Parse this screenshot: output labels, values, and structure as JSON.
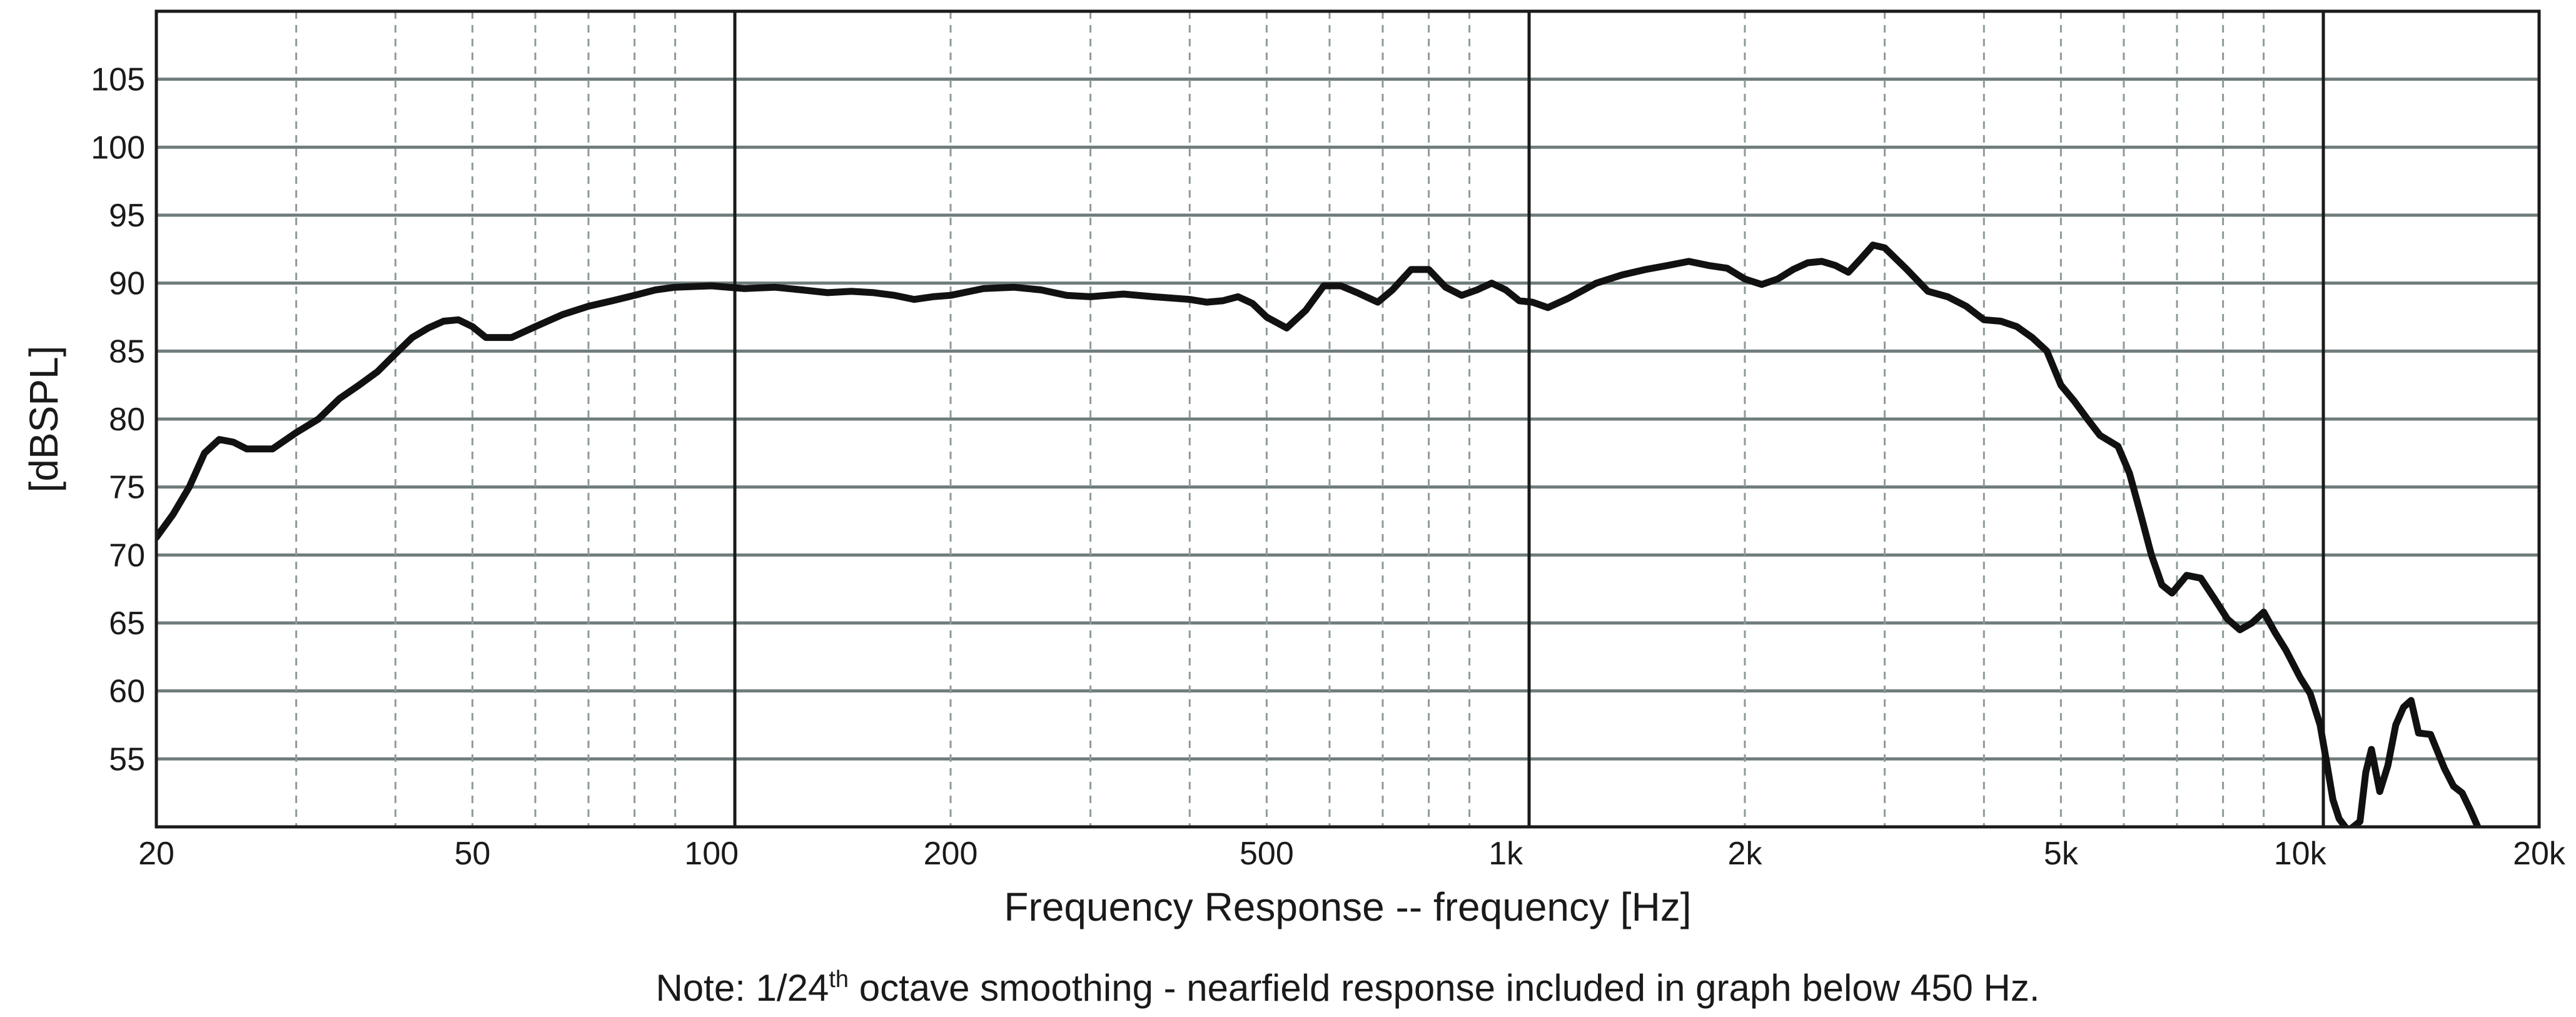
{
  "chart_data": {
    "type": "line",
    "xlabel": "Frequency Response -- frequency [Hz]",
    "ylabel": "[dBSPL]",
    "x_scale": "log",
    "xlim": [
      20,
      20000
    ],
    "ylim": [
      50,
      110
    ],
    "grid": true,
    "x_ticks": [
      {
        "value": 20,
        "label": "20"
      },
      {
        "value": 50,
        "label": "50"
      },
      {
        "value": 100,
        "label": "100"
      },
      {
        "value": 200,
        "label": "200"
      },
      {
        "value": 500,
        "label": "500"
      },
      {
        "value": 1000,
        "label": "1k"
      },
      {
        "value": 2000,
        "label": "2k"
      },
      {
        "value": 5000,
        "label": "5k"
      },
      {
        "value": 10000,
        "label": "10k"
      },
      {
        "value": 20000,
        "label": "20k"
      }
    ],
    "x_minor_grid": [
      30,
      40,
      50,
      60,
      70,
      80,
      90,
      200,
      300,
      400,
      500,
      600,
      700,
      800,
      900,
      2000,
      3000,
      4000,
      5000,
      6000,
      7000,
      8000,
      9000
    ],
    "x_major_grid": [
      107,
      1070,
      10700
    ],
    "y_ticks": [
      55,
      60,
      65,
      70,
      75,
      80,
      85,
      90,
      95,
      100,
      105
    ],
    "series": [
      {
        "points": [
          [
            20,
            71.3
          ],
          [
            21,
            73
          ],
          [
            22,
            75
          ],
          [
            23,
            77.5
          ],
          [
            24,
            78.5
          ],
          [
            25,
            78.3
          ],
          [
            26,
            77.8
          ],
          [
            28,
            77.8
          ],
          [
            30,
            79
          ],
          [
            32,
            80
          ],
          [
            34,
            81.5
          ],
          [
            36,
            82.5
          ],
          [
            38,
            83.5
          ],
          [
            40,
            84.8
          ],
          [
            42,
            86
          ],
          [
            44,
            86.7
          ],
          [
            46,
            87.2
          ],
          [
            48,
            87.3
          ],
          [
            50,
            86.8
          ],
          [
            52,
            86
          ],
          [
            56,
            86
          ],
          [
            60,
            86.8
          ],
          [
            65,
            87.7
          ],
          [
            70,
            88.3
          ],
          [
            75,
            88.7
          ],
          [
            80,
            89.1
          ],
          [
            85,
            89.5
          ],
          [
            90,
            89.7
          ],
          [
            100,
            89.8
          ],
          [
            110,
            89.6
          ],
          [
            120,
            89.7
          ],
          [
            130,
            89.5
          ],
          [
            140,
            89.3
          ],
          [
            150,
            89.4
          ],
          [
            160,
            89.3
          ],
          [
            170,
            89.1
          ],
          [
            180,
            88.8
          ],
          [
            190,
            89
          ],
          [
            200,
            89.1
          ],
          [
            220,
            89.6
          ],
          [
            240,
            89.7
          ],
          [
            260,
            89.5
          ],
          [
            280,
            89.1
          ],
          [
            300,
            89
          ],
          [
            330,
            89.2
          ],
          [
            360,
            89
          ],
          [
            400,
            88.8
          ],
          [
            420,
            88.6
          ],
          [
            440,
            88.7
          ],
          [
            460,
            89
          ],
          [
            480,
            88.5
          ],
          [
            500,
            87.5
          ],
          [
            530,
            86.7
          ],
          [
            560,
            88
          ],
          [
            590,
            89.8
          ],
          [
            620,
            89.8
          ],
          [
            650,
            89.3
          ],
          [
            690,
            88.6
          ],
          [
            720,
            89.5
          ],
          [
            760,
            91
          ],
          [
            800,
            91
          ],
          [
            840,
            89.7
          ],
          [
            880,
            89.1
          ],
          [
            920,
            89.5
          ],
          [
            960,
            90
          ],
          [
            1000,
            89.5
          ],
          [
            1040,
            88.7
          ],
          [
            1080,
            88.6
          ],
          [
            1130,
            88.2
          ],
          [
            1200,
            88.9
          ],
          [
            1300,
            90
          ],
          [
            1400,
            90.6
          ],
          [
            1500,
            91
          ],
          [
            1600,
            91.3
          ],
          [
            1700,
            91.6
          ],
          [
            1800,
            91.3
          ],
          [
            1900,
            91.1
          ],
          [
            2000,
            90.3
          ],
          [
            2100,
            89.9
          ],
          [
            2200,
            90.3
          ],
          [
            2300,
            91
          ],
          [
            2400,
            91.5
          ],
          [
            2500,
            91.6
          ],
          [
            2600,
            91.3
          ],
          [
            2700,
            90.8
          ],
          [
            2800,
            91.8
          ],
          [
            2900,
            92.8
          ],
          [
            3000,
            92.6
          ],
          [
            3200,
            91
          ],
          [
            3400,
            89.4
          ],
          [
            3600,
            89
          ],
          [
            3800,
            88.3
          ],
          [
            4000,
            87.3
          ],
          [
            4200,
            87.2
          ],
          [
            4400,
            86.8
          ],
          [
            4600,
            86
          ],
          [
            4800,
            85
          ],
          [
            5000,
            82.5
          ],
          [
            5200,
            81.3
          ],
          [
            5400,
            80
          ],
          [
            5600,
            78.8
          ],
          [
            5900,
            78
          ],
          [
            6100,
            76
          ],
          [
            6300,
            73
          ],
          [
            6500,
            70
          ],
          [
            6700,
            67.8
          ],
          [
            6900,
            67.2
          ],
          [
            7200,
            68.5
          ],
          [
            7500,
            68.3
          ],
          [
            7800,
            66.8
          ],
          [
            8100,
            65.3
          ],
          [
            8400,
            64.5
          ],
          [
            8700,
            65
          ],
          [
            9000,
            65.8
          ],
          [
            9300,
            64.3
          ],
          [
            9600,
            63
          ],
          [
            10000,
            61
          ],
          [
            10300,
            59.8
          ],
          [
            10600,
            57.5
          ],
          [
            10800,
            54.8
          ],
          [
            11000,
            52
          ],
          [
            11200,
            50.6
          ],
          [
            11500,
            49.7
          ],
          [
            11900,
            50.4
          ],
          [
            12100,
            54
          ],
          [
            12300,
            55.7
          ],
          [
            12600,
            52.6
          ],
          [
            12900,
            54.5
          ],
          [
            13200,
            57.5
          ],
          [
            13500,
            58.8
          ],
          [
            13800,
            59.3
          ],
          [
            14100,
            56.9
          ],
          [
            14600,
            56.8
          ],
          [
            15200,
            54.3
          ],
          [
            15600,
            53
          ],
          [
            16000,
            52.5
          ],
          [
            16400,
            51.2
          ],
          [
            16800,
            49.8
          ]
        ]
      }
    ]
  },
  "note": {
    "prefix": "Note: 1/24",
    "superscript": "th",
    "suffix": " octave smoothing - nearfield response included in graph below 450 Hz."
  }
}
